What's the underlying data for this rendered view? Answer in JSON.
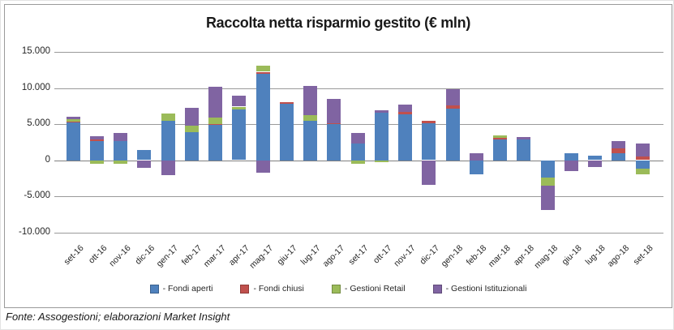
{
  "title": "Raccolta netta risparmio gestito (€ mln)",
  "source_note": "Fonte: Assogestioni; elaborazioni Market Insight",
  "chart_data": {
    "type": "bar",
    "stacked": true,
    "title": "Raccolta netta risparmio gestito (€ mln)",
    "xlabel": "",
    "ylabel": "",
    "ylim": [
      -10000,
      15000
    ],
    "ytick_interval": 5000,
    "ytick_labels": [
      "15.000",
      "10.000",
      "5.000",
      "0",
      "-5.000",
      "-10.000"
    ],
    "ytick_values": [
      15000,
      10000,
      5000,
      0,
      -5000,
      -10000
    ],
    "grid": true,
    "legend_position": "bottom",
    "categories": [
      "set-16",
      "ott-16",
      "nov-16",
      "dic-16",
      "gen-17",
      "feb-17",
      "mar-17",
      "apr-17",
      "mag-17",
      "giu-17",
      "lug-17",
      "ago-17",
      "set-17",
      "ott-17",
      "nov-17",
      "dic-17",
      "gen-18",
      "feb-18",
      "mar-18",
      "apr-18",
      "mag-18",
      "giu-18",
      "lug-18",
      "ago-18",
      "set-18"
    ],
    "series": [
      {
        "name": "Fondi aperti",
        "legend_label": "- Fondi aperti",
        "color": "#4F81BD",
        "values": [
          5300,
          2700,
          2700,
          1400,
          5500,
          3900,
          4900,
          7100,
          12000,
          7800,
          5500,
          5000,
          2300,
          6600,
          6400,
          5200,
          7200,
          -1900,
          2900,
          2900,
          -2400,
          1000,
          600,
          1000,
          -1100
        ]
      },
      {
        "name": "Fondi chiusi",
        "legend_label": "- Fondi chiusi",
        "color": "#C0504D",
        "values": [
          100,
          200,
          0,
          0,
          0,
          0,
          100,
          0,
          250,
          200,
          0,
          100,
          0,
          0,
          300,
          300,
          400,
          0,
          300,
          0,
          0,
          0,
          0,
          700,
          500
        ]
      },
      {
        "name": "Gestioni Retail",
        "legend_label": "- Gestioni Retail",
        "color": "#9BBB59",
        "values": [
          300,
          -400,
          -500,
          0,
          1000,
          900,
          900,
          300,
          800,
          0,
          800,
          0,
          -500,
          -200,
          0,
          0,
          0,
          0,
          300,
          0,
          -1100,
          0,
          0,
          0,
          -750
        ]
      },
      {
        "name": "Gestioni Istituzionali",
        "legend_label": "- Gestioni Istituzionali",
        "color": "#8064A2",
        "values": [
          300,
          400,
          1100,
          -1000,
          -2000,
          2500,
          4300,
          1500,
          -1700,
          0,
          4000,
          3400,
          1500,
          300,
          1000,
          -3400,
          2200,
          1000,
          0,
          300,
          -3400,
          -1500,
          -900,
          1000,
          1800
        ]
      }
    ]
  }
}
